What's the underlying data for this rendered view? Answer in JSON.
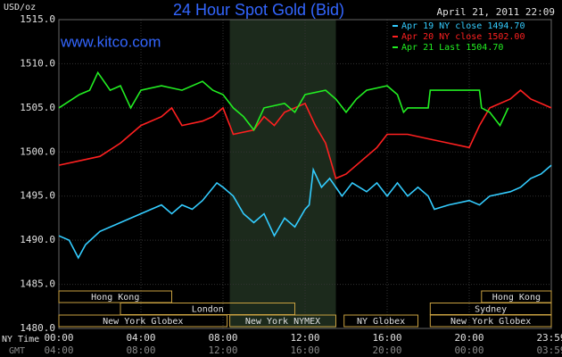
{
  "chart_data": {
    "type": "line",
    "title": "24 Hour Spot Gold (Bid)",
    "watermark": "www.kitco.com",
    "timestamp": "April 21, 2011 22:09",
    "y_label": "USD/oz",
    "x_label": "NY Time",
    "x2_label": "GMT",
    "xlim": [
      0,
      24
    ],
    "xticks": [
      {
        "value": 0,
        "label": "00:00"
      },
      {
        "value": 4,
        "label": "04:00"
      },
      {
        "value": 8,
        "label": "08:00"
      },
      {
        "value": 12,
        "label": "12:00"
      },
      {
        "value": 16,
        "label": "16:00"
      },
      {
        "value": 20,
        "label": "20:00"
      },
      {
        "value": 24,
        "label": "23:59"
      }
    ],
    "gmt_labels": [
      "04:00",
      "08:00",
      "12:00",
      "16:00",
      "20:00",
      "00:00",
      "03:59"
    ],
    "ylim": [
      1480,
      1515
    ],
    "yticks": [
      {
        "value": 1480,
        "label": "1480.0"
      },
      {
        "value": 1485,
        "label": "1485.0"
      },
      {
        "value": 1490,
        "label": "1490.0"
      },
      {
        "value": 1495,
        "label": "1495.0"
      },
      {
        "value": 1500,
        "label": "1500.0"
      },
      {
        "value": 1505,
        "label": "1505.0"
      },
      {
        "value": 1510,
        "label": "1510.0"
      },
      {
        "value": 1515,
        "label": "1515.0"
      }
    ],
    "grid": true,
    "legend": "top-right",
    "series": [
      {
        "name": "Apr 19 NY close 1494.70",
        "color": "#33ccff",
        "x": [
          0,
          0.5,
          0.95,
          1.3,
          2,
          3,
          4.5,
          5,
          5.5,
          6,
          6.5,
          7,
          7.7,
          8,
          8.5,
          9,
          9.5,
          10,
          10.5,
          11,
          11.5,
          12,
          12.2,
          12.4,
          12.8,
          13.2,
          13.8,
          14.3,
          15,
          15.5,
          16,
          16.5,
          17,
          17.5,
          18,
          18.3,
          19,
          20,
          20.5,
          21,
          22,
          22.5,
          23,
          23.5,
          24
        ],
        "values": [
          1490.5,
          1490,
          1488,
          1489.5,
          1491,
          1492,
          1493.5,
          1494,
          1493,
          1494,
          1493.5,
          1494.5,
          1496.5,
          1496,
          1495,
          1493,
          1492,
          1493,
          1490.5,
          1492.5,
          1491.5,
          1493.5,
          1494,
          1498,
          1496,
          1497,
          1495,
          1496.5,
          1495.5,
          1496.5,
          1495,
          1496.5,
          1495,
          1496,
          1495,
          1493.5,
          1494,
          1494.5,
          1494,
          1495,
          1495.5,
          1496,
          1497,
          1497.5,
          1498.5
        ]
      },
      {
        "name": "Apr 20 NY close 1502.00",
        "color": "#ff2020",
        "x": [
          0,
          1,
          2,
          3,
          4,
          5,
          5.5,
          6,
          7,
          7.5,
          8,
          8.5,
          9.5,
          10,
          10.5,
          11,
          12,
          12.5,
          13,
          13.5,
          14,
          15,
          15.5,
          16,
          17,
          18,
          19,
          20,
          20.5,
          21,
          22,
          22.5,
          23,
          23.5,
          24
        ],
        "values": [
          1498.5,
          1499,
          1499.5,
          1501,
          1503,
          1504,
          1505,
          1503,
          1503.5,
          1504,
          1505,
          1502,
          1502.5,
          1504,
          1503,
          1504.5,
          1505.5,
          1503,
          1501,
          1497,
          1497.5,
          1499.5,
          1500.5,
          1502,
          1502,
          1501.5,
          1501,
          1500.5,
          1503,
          1505,
          1506,
          1507,
          1506,
          1505.5,
          1505
        ]
      },
      {
        "name": "Apr 21 Last 1504.70",
        "color": "#22ee22",
        "x": [
          0,
          1,
          1.5,
          1.9,
          2.5,
          3,
          3.5,
          4,
          5,
          6,
          7,
          7.5,
          8,
          8.5,
          9,
          9.5,
          10,
          11,
          11.5,
          12,
          13,
          13.5,
          14,
          14.5,
          15,
          16,
          16.5,
          16.8,
          17,
          18,
          18.1,
          20.5,
          20.6,
          21,
          21.5,
          21.9
        ],
        "values": [
          1505,
          1506.5,
          1507,
          1509,
          1507,
          1507.5,
          1505,
          1507,
          1507.5,
          1507,
          1508,
          1507,
          1506.5,
          1505,
          1504,
          1502.5,
          1505,
          1505.5,
          1504.5,
          1506.5,
          1507,
          1506,
          1504.5,
          1506,
          1507,
          1507.5,
          1506.5,
          1504.5,
          1505,
          1505,
          1507,
          1507,
          1505,
          1504.5,
          1503,
          1505
        ]
      }
    ],
    "sessions": [
      {
        "name": "Hong Kong",
        "row": 0,
        "start": 0,
        "end": 5.5
      },
      {
        "name": "Hong Kong",
        "row": 0,
        "start": 20.6,
        "end": 24
      },
      {
        "name": "London",
        "row": 1,
        "start": 3,
        "end": 11.5
      },
      {
        "name": "Sydney",
        "row": 1,
        "start": 18.1,
        "end": 24
      },
      {
        "name": "New York Globex",
        "row": 2,
        "start": 0,
        "end": 8.2
      },
      {
        "name": "New York NYMEX",
        "row": 2,
        "start": 8.33,
        "end": 13.5,
        "shaded": true
      },
      {
        "name": "NY Globex",
        "row": 2,
        "start": 13.9,
        "end": 17.5
      },
      {
        "name": "New York Globex",
        "row": 2,
        "start": 18.1,
        "end": 24
      }
    ]
  }
}
